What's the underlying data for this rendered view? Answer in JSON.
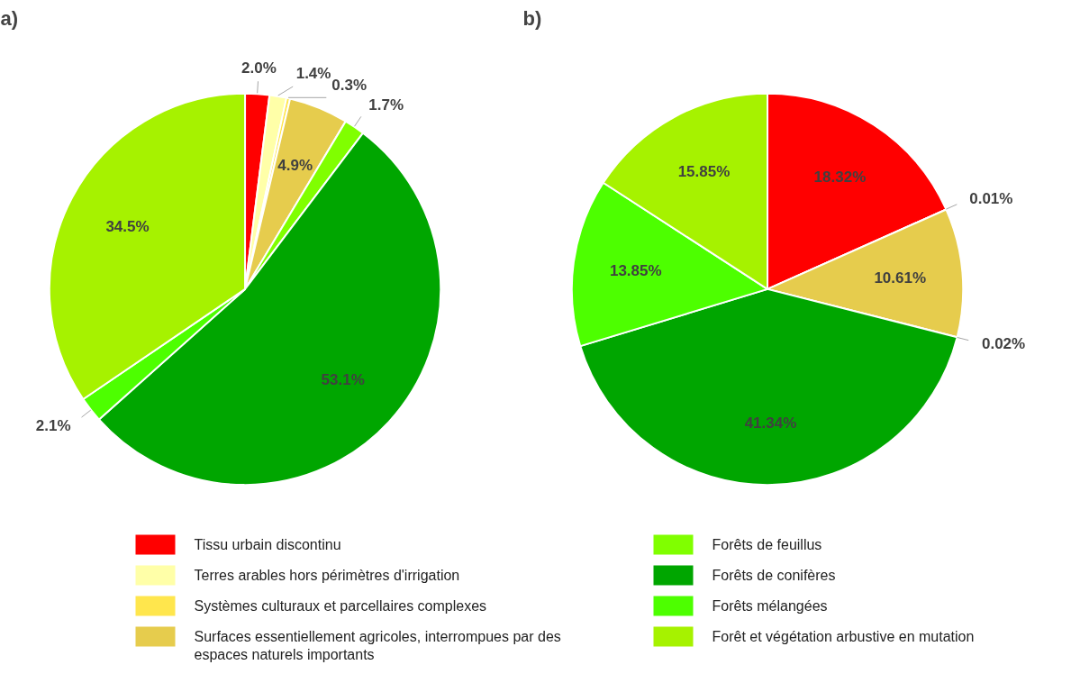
{
  "chart_data": [
    {
      "type": "pie",
      "title": "a)",
      "legend": "bottom",
      "categories": [
        "Tissu urbain discontinu",
        "Terres arables hors périmètres d'irrigation",
        "Systèmes culturaux et parcellaires complexes",
        "Surfaces essentiellement agricoles, interrompues par des espaces naturels importants",
        "Forêts de feuillus",
        "Forêts de conifères",
        "Forêts mélangées",
        "Forêt et végétation arbustive en mutation"
      ],
      "values": [
        2.0,
        1.4,
        0.3,
        4.9,
        1.7,
        53.1,
        2.1,
        34.5
      ],
      "value_labels": [
        "2.0%",
        "1.4%",
        "0.3%",
        "4.9%",
        "1.7%",
        "53.1%",
        "2.1%",
        "34.5%"
      ],
      "colors": [
        "#ff0000",
        "#ffffa8",
        "#ffe64d",
        "#e6cc4d",
        "#80ff00",
        "#00a600",
        "#4dff00",
        "#a6f200"
      ]
    },
    {
      "type": "pie",
      "title": "b)",
      "categories": [
        null,
        null,
        null,
        null,
        null,
        null,
        null
      ],
      "values": [
        18.32,
        0.01,
        10.61,
        0.02,
        41.34,
        13.85,
        15.85
      ],
      "value_labels": [
        "18.32%",
        "0.01%",
        "10.61%",
        "0.02%",
        "41.34%",
        "13.85%",
        "15.85%"
      ],
      "colors": [
        "#ff0000",
        "#ffe64d",
        "#e6cc4d",
        "#80ff00",
        "#00a600",
        "#4dff00",
        "#a6f200"
      ]
    }
  ]
}
